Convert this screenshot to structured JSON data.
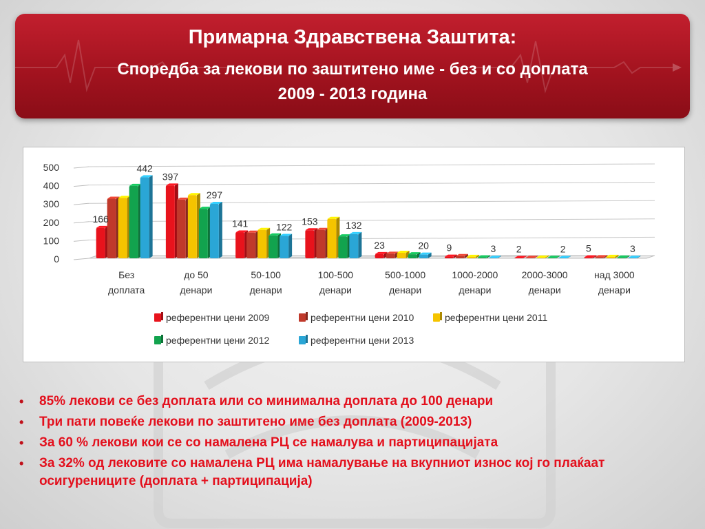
{
  "header": {
    "title": "Примарна Здравствена Заштита:",
    "subtitle": "Споредба за лекови по заштитено име - без и со доплата",
    "years": "2009 - 2013 година"
  },
  "bullets": [
    "85% лекови се без доплата или со минимална доплата до 100 денари",
    "Три пати повеќе лекови по заштитено име без доплата (2009-2013)",
    "За 60 % лекови кои се со намалена РЦ  се намалува и партиципацијата",
    "За 32% од лековите со намалена РЦ има намалување на вкупниот износ кој го плаќаат осигурениците (доплата + партиципација)"
  ],
  "colors": {
    "banner": "#b01825",
    "bullet_text": "#e3101d"
  },
  "chart_data": {
    "type": "bar",
    "categories": [
      [
        "Без",
        "доплата"
      ],
      [
        "до 50",
        "денари"
      ],
      [
        "50-100",
        "денари"
      ],
      [
        "100-500",
        "денари"
      ],
      [
        "500-1000",
        "денари"
      ],
      [
        "1000-2000",
        "денари"
      ],
      [
        "2000-3000",
        "денари"
      ],
      [
        "над 3000",
        "денари"
      ]
    ],
    "series": [
      {
        "name": "референтни цени 2009",
        "color": "#e8131c",
        "values": [
          166,
          397,
          141,
          153,
          23,
          9,
          2,
          5
        ]
      },
      {
        "name": "референтни цени 2010",
        "color": "#c0392b",
        "values": [
          325,
          320,
          140,
          155,
          25,
          12,
          3,
          6
        ]
      },
      {
        "name": "референтни цени 2011",
        "color": "#f5c400",
        "values": [
          330,
          345,
          155,
          215,
          30,
          8,
          4,
          8
        ]
      },
      {
        "name": "референтни цени 2012",
        "color": "#12a34e",
        "values": [
          395,
          270,
          125,
          120,
          22,
          5,
          3,
          4
        ]
      },
      {
        "name": "референтни цени 2013",
        "color": "#2aa6d6",
        "values": [
          442,
          297,
          122,
          132,
          20,
          3,
          2,
          3
        ]
      }
    ],
    "data_labels": [
      {
        "category": 0,
        "series": 0,
        "text": "166"
      },
      {
        "category": 0,
        "series": 4,
        "text": "442"
      },
      {
        "category": 1,
        "series": 0,
        "text": "397"
      },
      {
        "category": 1,
        "series": 4,
        "text": "297"
      },
      {
        "category": 2,
        "series": 0,
        "text": "141"
      },
      {
        "category": 2,
        "series": 4,
        "text": "122"
      },
      {
        "category": 3,
        "series": 0,
        "text": "153"
      },
      {
        "category": 3,
        "series": 4,
        "text": "132"
      },
      {
        "category": 4,
        "series": 0,
        "text": "23"
      },
      {
        "category": 4,
        "series": 4,
        "text": "20"
      },
      {
        "category": 5,
        "series": 0,
        "text": "9"
      },
      {
        "category": 5,
        "series": 4,
        "text": "3"
      },
      {
        "category": 6,
        "series": 0,
        "text": "2"
      },
      {
        "category": 6,
        "series": 4,
        "text": "2"
      },
      {
        "category": 7,
        "series": 0,
        "text": "5"
      },
      {
        "category": 7,
        "series": 4,
        "text": "3"
      }
    ],
    "yticks": [
      0,
      100,
      200,
      300,
      400,
      500
    ],
    "ylim": [
      0,
      500
    ],
    "grid": true,
    "legend_position": "bottom",
    "title": "",
    "xlabel": "",
    "ylabel": ""
  }
}
